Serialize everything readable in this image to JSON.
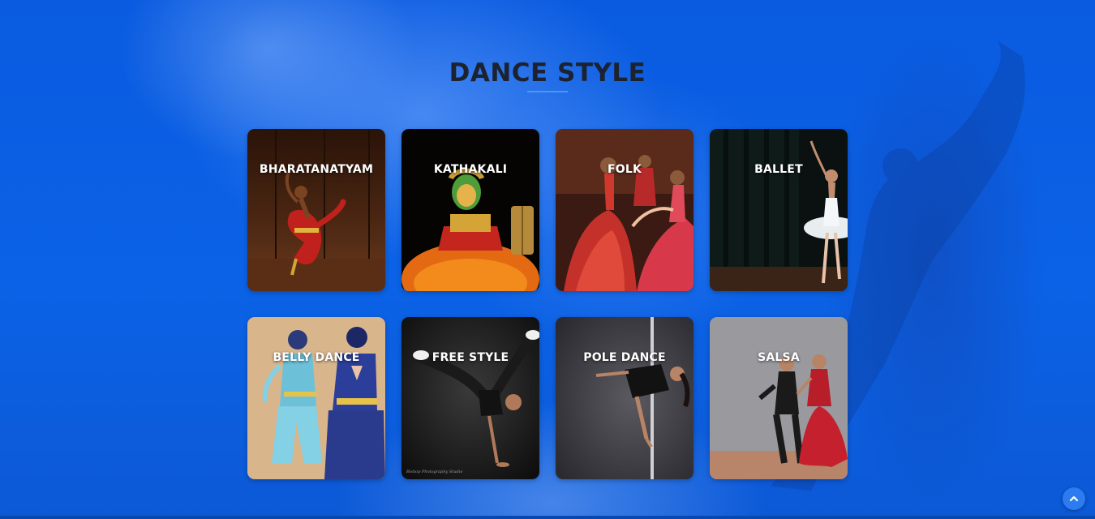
{
  "page": {
    "title": "DANCE STYLE"
  },
  "styles": [
    {
      "label": "BHARATANATYAM",
      "icon": "bharatanatyam-dancer"
    },
    {
      "label": "KATHAKALI",
      "icon": "kathakali-performer"
    },
    {
      "label": "FOLK",
      "icon": "folk-dancers"
    },
    {
      "label": "BALLET",
      "icon": "ballet-dancer"
    },
    {
      "label": "BELLY DANCE",
      "icon": "belly-dancers"
    },
    {
      "label": "FREE STYLE",
      "icon": "freestyle-dancer"
    },
    {
      "label": "POLE DANCE",
      "icon": "pole-dancer"
    },
    {
      "label": "SALSA",
      "icon": "salsa-couple"
    }
  ],
  "scroll_top": {
    "icon": "chevron-up-icon"
  },
  "colors": {
    "background": "#0a5fe0",
    "title": "#1c2230",
    "card_label": "#ffffff",
    "scroll_button": "#2d7bf0"
  }
}
